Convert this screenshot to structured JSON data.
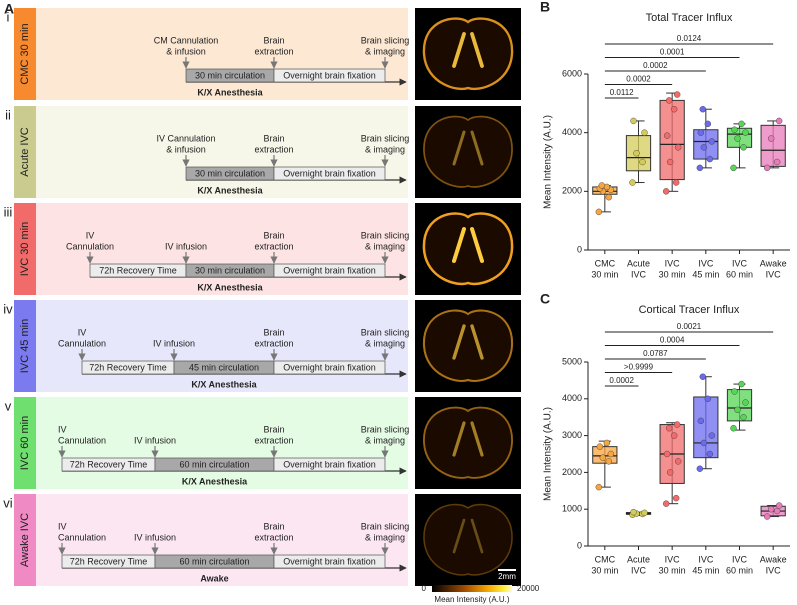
{
  "panel_a": {
    "letter": "A",
    "rows": [
      {
        "numeral": "i",
        "label": "CMC 30 min",
        "color": "#f7892f",
        "background": "#fde8d4",
        "annotations": [
          [
            "CM Cannulation",
            "& infusion"
          ],
          [
            "Brain",
            "extraction"
          ],
          [
            "Brain slicing",
            "& imaging"
          ]
        ],
        "bars": [
          "30 min circulation",
          "Overnight brain fixation"
        ],
        "condition": "K/X Anesthesia"
      },
      {
        "numeral": "ii",
        "label": "Acute IVC",
        "color": "#c9cc8e",
        "background": "#f6f6e9",
        "annotations": [
          [
            "IV Cannulation",
            "& infusion"
          ],
          [
            "Brain",
            "extraction"
          ],
          [
            "Brain slicing",
            "& imaging"
          ]
        ],
        "bars": [
          "30 min circulation",
          "Overnight brain fixation"
        ],
        "condition": "K/X Anesthesia"
      },
      {
        "numeral": "iii",
        "label": "IVC 30 min",
        "color": "#f26b6b",
        "background": "#fde3e3",
        "annotations": [
          [
            "IV",
            "Cannulation"
          ],
          [
            "IV infusion"
          ],
          [
            "Brain",
            "extraction"
          ],
          [
            "Brain slicing",
            "& imaging"
          ]
        ],
        "bars": [
          "72h Recovery Time",
          "30 min circulation",
          "Overnight brain fixation"
        ],
        "condition": "K/X Anesthesia"
      },
      {
        "numeral": "iv",
        "label": "IVC 45 min",
        "color": "#7b7bef",
        "background": "#e7e7fb",
        "annotations": [
          [
            "IV",
            "Cannulation"
          ],
          [
            "IV infusion"
          ],
          [
            "Brain",
            "extraction"
          ],
          [
            "Brain slicing",
            "& imaging"
          ]
        ],
        "bars": [
          "72h Recovery Time",
          "45 min circulation",
          "Overnight brain fixation"
        ],
        "condition": "K/X Anesthesia"
      },
      {
        "numeral": "v",
        "label": "IVC 60 min",
        "color": "#6fe06f",
        "background": "#e4fbe4",
        "annotations": [
          [
            "IV",
            "Cannulation"
          ],
          [
            "IV infusion"
          ],
          [
            "Brain",
            "extraction"
          ],
          [
            "Brain slicing",
            "& imaging"
          ]
        ],
        "bars": [
          "72h Recovery Time",
          "60 min circulation",
          "Overnight brain fixation"
        ],
        "condition": "K/X Anesthesia"
      },
      {
        "numeral": "vi",
        "label": "Awake IVC",
        "color": "#f08ac4",
        "background": "#fbe6f2",
        "annotations": [
          [
            "IV",
            "Cannulation"
          ],
          [
            "IV infusion"
          ],
          [
            "Brain",
            "extraction"
          ],
          [
            "Brain slicing",
            "& imaging"
          ]
        ],
        "bars": [
          "72h Recovery Time",
          "60 min circulation",
          "Overnight brain fixation"
        ],
        "condition": "Awake"
      }
    ],
    "scale_bar": "2mm",
    "colorbar": {
      "min_label": "0",
      "max_label": "20000",
      "title": "Mean Intensity (A.U.)"
    }
  },
  "chart_data": [
    {
      "type": "box",
      "panel_letter": "B",
      "title": "Total Tracer Influx",
      "y_label": "Mean Intensity (A.U.)",
      "categories": [
        [
          "CMC",
          "30 min"
        ],
        [
          "Acute",
          "IVC"
        ],
        [
          "IVC",
          "30 min"
        ],
        [
          "IVC",
          "45 min"
        ],
        [
          "IVC",
          "60 min"
        ],
        [
          "Awake",
          "IVC"
        ]
      ],
      "ylim": [
        0,
        6000
      ],
      "yticks": [
        0,
        2000,
        4000,
        6000
      ],
      "p_values": [
        null,
        "0.0112",
        "0.0002",
        "0.0002",
        "0.0001",
        "0.0124"
      ],
      "series": [
        {
          "color": "#f7a541",
          "points": [
            1300,
            1800,
            2000,
            2050,
            2100,
            2150,
            2200
          ],
          "box": {
            "min": 1300,
            "q1": 1900,
            "median": 2000,
            "q3": 2150,
            "max": 2200
          }
        },
        {
          "color": "#d4cc5a",
          "points": [
            2300,
            3000,
            3300,
            4000,
            4400
          ],
          "box": {
            "min": 2300,
            "q1": 2700,
            "median": 3150,
            "q3": 3900,
            "max": 4400
          }
        },
        {
          "color": "#f26b6b",
          "points": [
            2000,
            2300,
            3000,
            3500,
            3900,
            4800,
            5100,
            5300
          ],
          "box": {
            "min": 2000,
            "q1": 2400,
            "median": 3600,
            "q3": 5100,
            "max": 5350
          }
        },
        {
          "color": "#6b6bf0",
          "points": [
            2800,
            3100,
            3500,
            3700,
            4000,
            4300,
            4800
          ],
          "box": {
            "min": 2800,
            "q1": 3100,
            "median": 3700,
            "q3": 4100,
            "max": 4800
          }
        },
        {
          "color": "#55d655",
          "points": [
            2800,
            3500,
            3800,
            4000,
            4100,
            4300
          ],
          "box": {
            "min": 2800,
            "q1": 3500,
            "median": 3950,
            "q3": 4150,
            "max": 4300
          }
        },
        {
          "color": "#e87bb9",
          "points": [
            2800,
            3000,
            3800,
            4400
          ],
          "box": {
            "min": 2800,
            "q1": 2850,
            "median": 3400,
            "q3": 4250,
            "max": 4400
          }
        }
      ]
    },
    {
      "type": "box",
      "panel_letter": "C",
      "title": "Cortical Tracer Influx",
      "y_label": "Mean Intensity (A.U.)",
      "categories": [
        [
          "CMC",
          "30 min"
        ],
        [
          "Acute",
          "IVC"
        ],
        [
          "IVC",
          "30 min"
        ],
        [
          "IVC",
          "45 min"
        ],
        [
          "IVC",
          "60 min"
        ],
        [
          "Awake",
          "IVC"
        ]
      ],
      "ylim": [
        0,
        5000
      ],
      "yticks": [
        0,
        1000,
        2000,
        3000,
        4000,
        5000
      ],
      "p_values": [
        null,
        "0.0002",
        ">0.9999",
        "0.0787",
        "0.0004",
        "0.0021"
      ],
      "series": [
        {
          "color": "#f7a541",
          "points": [
            1600,
            2300,
            2400,
            2500,
            2700,
            2800
          ],
          "box": {
            "min": 1600,
            "q1": 2250,
            "median": 2450,
            "q3": 2700,
            "max": 2850
          }
        },
        {
          "color": "#d4cc5a",
          "points": [
            850,
            870,
            880,
            900,
            920
          ],
          "box": {
            "min": 830,
            "q1": 860,
            "median": 880,
            "q3": 910,
            "max": 920
          }
        },
        {
          "color": "#f26b6b",
          "points": [
            1150,
            1300,
            2000,
            2300,
            2500,
            3000,
            3200,
            3300
          ],
          "box": {
            "min": 1150,
            "q1": 1700,
            "median": 2500,
            "q3": 3300,
            "max": 3350
          }
        },
        {
          "color": "#6b6bf0",
          "points": [
            2100,
            2500,
            2800,
            3000,
            3400,
            4000,
            4600
          ],
          "box": {
            "min": 2100,
            "q1": 2400,
            "median": 2800,
            "q3": 4050,
            "max": 4600
          }
        },
        {
          "color": "#55d655",
          "points": [
            3200,
            3500,
            3700,
            3900,
            4200,
            4400
          ],
          "box": {
            "min": 3150,
            "q1": 3400,
            "median": 3750,
            "q3": 4250,
            "max": 4400
          }
        },
        {
          "color": "#e87bb9",
          "points": [
            800,
            950,
            1000,
            1100
          ],
          "box": {
            "min": 800,
            "q1": 820,
            "median": 950,
            "q3": 1080,
            "max": 1100
          }
        }
      ]
    }
  ]
}
